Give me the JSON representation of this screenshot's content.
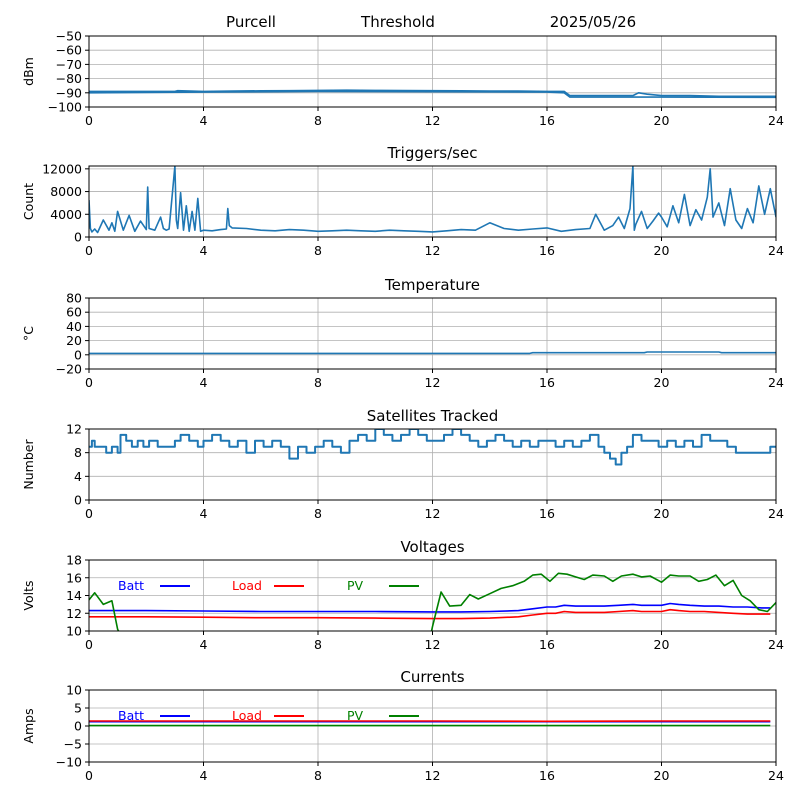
{
  "header": {
    "site": "Purcell",
    "mode": "Threshold",
    "date": "2025/05/26"
  },
  "colors": {
    "series": "#1f77b4",
    "batt": "#0000ff",
    "load": "#ff0000",
    "pv": "#008000",
    "grid": "#b0b0b0"
  },
  "chart_data": [
    {
      "type": "line",
      "title": "",
      "xlabel": "",
      "ylabel": "dBm",
      "xlim": [
        0,
        24
      ],
      "ylim": [
        -100,
        -50
      ],
      "xticks": [
        "0",
        "4",
        "8",
        "12",
        "16",
        "20",
        "24"
      ],
      "yticks": [
        "−50",
        "−60",
        "−70",
        "−80",
        "−90",
        "−100"
      ],
      "yticks_values": [
        -50,
        -60,
        -70,
        -80,
        -90,
        -100
      ],
      "grid": true,
      "series": [
        {
          "x": [
            0,
            3,
            3.1,
            4,
            5,
            6,
            7,
            8,
            9,
            10,
            11,
            12,
            13,
            14,
            15,
            16,
            16.6,
            16.8,
            17,
            18,
            19,
            19.2,
            19.5,
            20,
            21,
            22,
            23,
            24
          ],
          "y": [
            -89,
            -89,
            -88.5,
            -89,
            -88.8,
            -88.6,
            -88.5,
            -88.3,
            -88.2,
            -88.3,
            -88.4,
            -88.5,
            -88.6,
            -88.7,
            -88.8,
            -89,
            -89,
            -92,
            -92,
            -92,
            -92,
            -90,
            -91,
            -92,
            -92,
            -92.5,
            -92.5,
            -92.5
          ]
        },
        {
          "x": [
            0,
            4,
            8,
            12,
            16,
            16.6,
            16.8,
            20,
            24
          ],
          "y": [
            -90,
            -89.5,
            -89,
            -89.2,
            -89.5,
            -90,
            -93,
            -93,
            -93.2
          ]
        }
      ]
    },
    {
      "type": "line",
      "title": "Triggers/sec",
      "xlabel": "",
      "ylabel": "Count",
      "xlim": [
        0,
        24
      ],
      "ylim": [
        0,
        12500
      ],
      "xticks": [
        "0",
        "4",
        "8",
        "12",
        "16",
        "20",
        "24"
      ],
      "yticks": [
        "0",
        "4000",
        "8000",
        "12000"
      ],
      "yticks_values": [
        0,
        4000,
        8000,
        12000
      ],
      "grid": true,
      "series": [
        {
          "x": [
            0,
            0.05,
            0.1,
            0.2,
            0.3,
            0.5,
            0.7,
            0.8,
            0.9,
            1.0,
            1.2,
            1.4,
            1.6,
            1.8,
            2.0,
            2.05,
            2.1,
            2.3,
            2.5,
            2.6,
            2.7,
            2.8,
            3.0,
            3.05,
            3.1,
            3.2,
            3.3,
            3.4,
            3.5,
            3.6,
            3.7,
            3.8,
            3.9,
            4.0,
            4.3,
            4.6,
            4.8,
            4.85,
            4.9,
            5.0,
            5.5,
            6.0,
            6.5,
            7.0,
            7.5,
            8.0,
            8.5,
            9.0,
            9.5,
            10.0,
            10.5,
            11.0,
            11.5,
            12.0,
            12.5,
            13.0,
            13.5,
            14.0,
            14.5,
            15.0,
            15.5,
            16.0,
            16.5,
            17.0,
            17.5,
            17.7,
            18.0,
            18.3,
            18.5,
            18.7,
            18.9,
            19.0,
            19.05,
            19.1,
            19.3,
            19.5,
            19.7,
            19.9,
            20.0,
            20.2,
            20.4,
            20.6,
            20.8,
            21.0,
            21.2,
            21.4,
            21.6,
            21.7,
            21.8,
            22.0,
            22.2,
            22.4,
            22.6,
            22.8,
            23.0,
            23.2,
            23.4,
            23.6,
            23.8,
            24.0
          ],
          "y": [
            6500,
            1500,
            900,
            1400,
            800,
            3000,
            1200,
            2500,
            1000,
            4500,
            1200,
            3800,
            1000,
            2800,
            1300,
            8800,
            1500,
            1200,
            3500,
            1500,
            1200,
            1400,
            12500,
            3000,
            1500,
            7800,
            1200,
            5500,
            1000,
            4500,
            1200,
            6800,
            1000,
            1200,
            1100,
            1300,
            1400,
            5000,
            2000,
            1600,
            1500,
            1200,
            1100,
            1300,
            1200,
            1000,
            1100,
            1200,
            1100,
            1000,
            1200,
            1100,
            1000,
            900,
            1100,
            1300,
            1200,
            2500,
            1500,
            1200,
            1400,
            1600,
            1000,
            1300,
            1500,
            4000,
            1200,
            2000,
            3500,
            1500,
            5000,
            12500,
            1200,
            2200,
            4500,
            1500,
            2800,
            4200,
            3500,
            1800,
            5500,
            2500,
            7500,
            2000,
            4800,
            3000,
            7000,
            12000,
            3500,
            6000,
            2000,
            8500,
            3000,
            1500,
            5000,
            2500,
            9000,
            4000,
            8500,
            3500
          ]
        }
      ]
    },
    {
      "type": "line",
      "title": "Temperature",
      "xlabel": "",
      "ylabel": "°C",
      "xlim": [
        0,
        24
      ],
      "ylim": [
        -20,
        80
      ],
      "xticks": [
        "0",
        "4",
        "8",
        "12",
        "16",
        "20",
        "24"
      ],
      "yticks": [
        "−20",
        "0",
        "20",
        "40",
        "60",
        "80"
      ],
      "yticks_values": [
        -20,
        0,
        20,
        40,
        60,
        80
      ],
      "grid": true,
      "series": [
        {
          "x": [
            0,
            4,
            8,
            12,
            15.4,
            15.5,
            19.4,
            19.5,
            22.0,
            22.1,
            24
          ],
          "y": [
            2,
            2,
            2,
            2,
            2,
            3,
            3,
            4,
            4,
            3,
            3
          ]
        }
      ]
    },
    {
      "type": "line",
      "title": "Satellites Tracked",
      "xlabel": "",
      "ylabel": "Number",
      "xlim": [
        0,
        24
      ],
      "ylim": [
        0,
        12
      ],
      "xticks": [
        "0",
        "4",
        "8",
        "12",
        "16",
        "20",
        "24"
      ],
      "yticks": [
        "0",
        "4",
        "8",
        "12"
      ],
      "yticks_values": [
        0,
        4,
        8,
        12
      ],
      "grid": true,
      "step": true,
      "series": [
        {
          "x": [
            0,
            0.1,
            0.2,
            0.5,
            0.6,
            0.8,
            1.0,
            1.1,
            1.3,
            1.5,
            1.7,
            1.9,
            2.1,
            2.4,
            2.7,
            3.0,
            3.2,
            3.5,
            3.8,
            4.0,
            4.3,
            4.6,
            4.9,
            5.2,
            5.5,
            5.8,
            6.1,
            6.4,
            6.7,
            7.0,
            7.3,
            7.6,
            7.9,
            8.2,
            8.5,
            8.8,
            9.1,
            9.4,
            9.7,
            10.0,
            10.3,
            10.6,
            10.9,
            11.2,
            11.5,
            11.8,
            12.1,
            12.4,
            12.7,
            13.0,
            13.3,
            13.6,
            13.9,
            14.2,
            14.5,
            14.8,
            15.1,
            15.4,
            15.7,
            16.0,
            16.3,
            16.6,
            16.9,
            17.2,
            17.5,
            17.8,
            18.0,
            18.2,
            18.4,
            18.6,
            18.8,
            19.0,
            19.3,
            19.6,
            19.9,
            20.2,
            20.5,
            20.8,
            21.1,
            21.4,
            21.7,
            22.0,
            22.3,
            22.6,
            22.9,
            23.2,
            23.5,
            23.8,
            24
          ],
          "y": [
            9,
            10,
            9,
            9,
            8,
            9,
            8,
            11,
            10,
            9,
            10,
            9,
            10,
            9,
            9,
            10,
            11,
            10,
            9,
            10,
            11,
            10,
            9,
            10,
            8,
            10,
            9,
            10,
            9,
            7,
            9,
            8,
            9,
            10,
            9,
            8,
            10,
            11,
            10,
            12,
            11,
            10,
            11,
            12,
            11,
            10,
            10,
            11,
            12,
            11,
            10,
            9,
            10,
            11,
            10,
            9,
            10,
            9,
            10,
            10,
            9,
            10,
            9,
            10,
            11,
            9,
            8,
            7,
            6,
            8,
            9,
            11,
            10,
            10,
            9,
            10,
            9,
            10,
            9,
            11,
            10,
            10,
            9,
            8,
            8,
            8,
            8,
            9,
            9
          ]
        }
      ]
    },
    {
      "type": "line",
      "title": "Voltages",
      "xlabel": "",
      "ylabel": "Volts",
      "xlim": [
        0,
        24
      ],
      "ylim": [
        10,
        18
      ],
      "xticks": [
        "0",
        "4",
        "8",
        "12",
        "16",
        "20",
        "24"
      ],
      "yticks": [
        "10",
        "12",
        "14",
        "16",
        "18"
      ],
      "yticks_values": [
        10,
        12,
        14,
        16,
        18
      ],
      "grid": true,
      "legend": "top-left",
      "series": [
        {
          "name": "Batt",
          "color": "#0000ff",
          "x": [
            0,
            2,
            4,
            6,
            8,
            10,
            12,
            13,
            14,
            15,
            15.5,
            16,
            16.3,
            16.6,
            17,
            17.5,
            18,
            18.5,
            19,
            19.3,
            19.6,
            20,
            20.3,
            20.6,
            21,
            21.5,
            22,
            22.5,
            23,
            23.5,
            23.8
          ],
          "y": [
            12.3,
            12.3,
            12.25,
            12.2,
            12.2,
            12.2,
            12.15,
            12.15,
            12.2,
            12.3,
            12.5,
            12.7,
            12.7,
            12.9,
            12.8,
            12.8,
            12.8,
            12.9,
            13.0,
            12.9,
            12.9,
            12.9,
            13.1,
            13.0,
            12.9,
            12.8,
            12.8,
            12.7,
            12.7,
            12.6,
            12.6
          ]
        },
        {
          "name": "Load",
          "color": "#ff0000",
          "x": [
            0,
            2,
            4,
            6,
            8,
            10,
            12,
            13,
            14,
            15,
            15.5,
            16,
            16.3,
            16.6,
            17,
            17.5,
            18,
            18.5,
            19,
            19.3,
            19.6,
            20,
            20.3,
            20.6,
            21,
            21.5,
            22,
            22.5,
            23,
            23.5,
            23.8
          ],
          "y": [
            11.6,
            11.6,
            11.55,
            11.5,
            11.5,
            11.45,
            11.4,
            11.4,
            11.45,
            11.6,
            11.8,
            12.0,
            12.0,
            12.2,
            12.1,
            12.1,
            12.1,
            12.2,
            12.3,
            12.2,
            12.2,
            12.2,
            12.4,
            12.3,
            12.2,
            12.2,
            12.1,
            12.0,
            11.9,
            11.9,
            11.9
          ]
        },
        {
          "name": "PV",
          "color": "#008000",
          "x": [
            0,
            0.2,
            0.5,
            0.8,
            1.0,
            1.2,
            11.9,
            12.0,
            12.3,
            12.6,
            13.0,
            13.3,
            13.6,
            14.0,
            14.4,
            14.8,
            15.2,
            15.5,
            15.8,
            16.1,
            16.4,
            16.7,
            17.0,
            17.3,
            17.6,
            18.0,
            18.3,
            18.6,
            19.0,
            19.3,
            19.6,
            20.0,
            20.3,
            20.6,
            21.0,
            21.3,
            21.6,
            21.9,
            22.2,
            22.5,
            22.8,
            23.1,
            23.4,
            23.7,
            24.0
          ],
          "y": [
            13.5,
            14.3,
            13.0,
            13.4,
            10.2,
            9.0,
            9.0,
            10.5,
            14.4,
            12.8,
            12.9,
            14.1,
            13.6,
            14.2,
            14.8,
            15.1,
            15.6,
            16.3,
            16.4,
            15.6,
            16.5,
            16.4,
            16.1,
            15.8,
            16.3,
            16.2,
            15.6,
            16.2,
            16.4,
            16.1,
            16.2,
            15.5,
            16.3,
            16.2,
            16.2,
            15.6,
            15.8,
            16.3,
            15.1,
            15.7,
            14.0,
            13.4,
            12.4,
            12.2,
            13.2
          ]
        }
      ]
    },
    {
      "type": "line",
      "title": "Currents",
      "xlabel": "",
      "ylabel": "Amps",
      "xlim": [
        0,
        24
      ],
      "ylim": [
        -10,
        10
      ],
      "xticks": [
        "0",
        "4",
        "8",
        "12",
        "16",
        "20",
        "24"
      ],
      "yticks": [
        "−10",
        "−5",
        "0",
        "5",
        "10"
      ],
      "yticks_values": [
        -10,
        -5,
        0,
        5,
        10
      ],
      "grid": true,
      "legend": "top-left",
      "series": [
        {
          "name": "Batt",
          "color": "#0000ff",
          "x": [
            0,
            4,
            8,
            12,
            16,
            20,
            23.8
          ],
          "y": [
            1.2,
            1.2,
            1.2,
            1.2,
            1.2,
            1.2,
            1.2
          ]
        },
        {
          "name": "Load",
          "color": "#ff0000",
          "x": [
            0,
            4,
            8,
            12,
            16,
            20,
            23.8
          ],
          "y": [
            1.4,
            1.4,
            1.4,
            1.4,
            1.3,
            1.4,
            1.4
          ]
        },
        {
          "name": "PV",
          "color": "#008000",
          "x": [
            0,
            4,
            8,
            12,
            16,
            20,
            23.8
          ],
          "y": [
            0.1,
            0.1,
            0.1,
            0.1,
            0.1,
            0.1,
            0.1
          ]
        }
      ]
    }
  ]
}
